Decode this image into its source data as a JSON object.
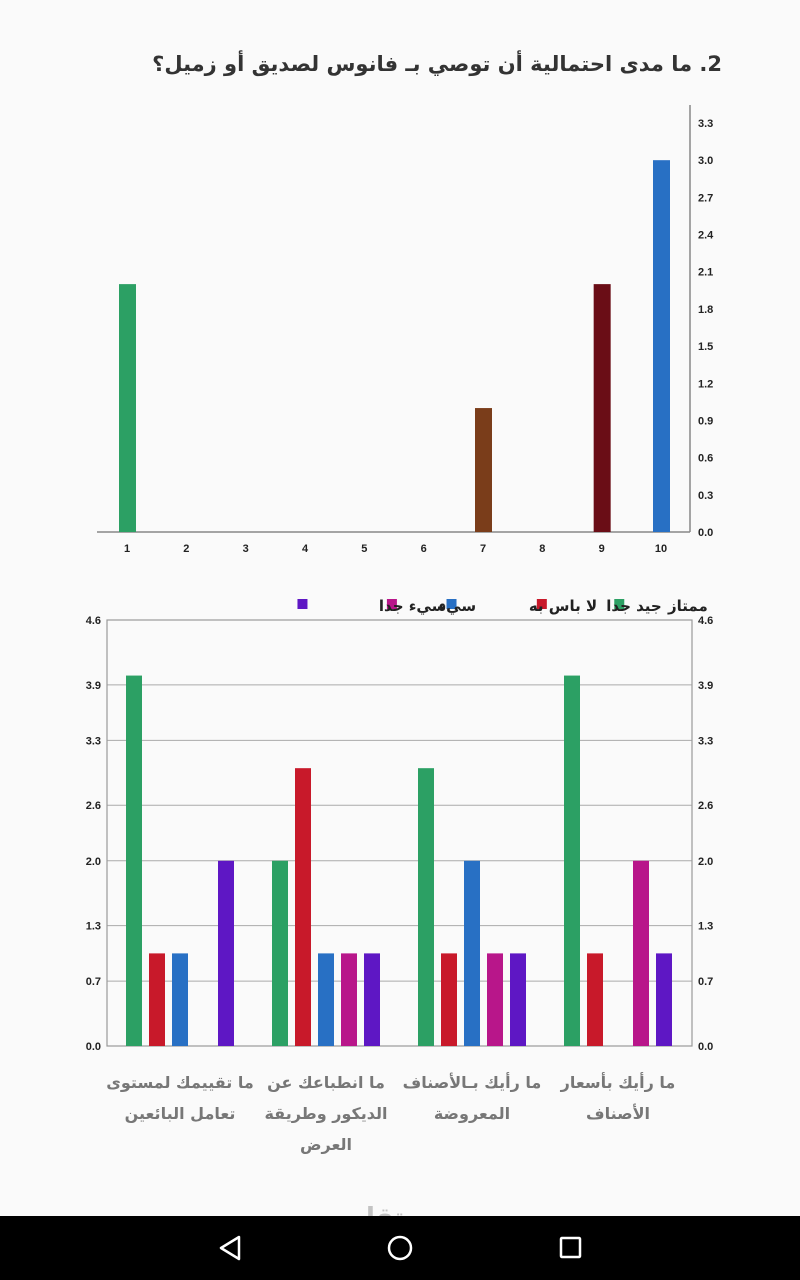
{
  "chart_data": [
    {
      "type": "bar",
      "title": "2. ما مدى احتمالية أن توصي بـ فانوس لصديق أو زميل؟",
      "categories": [
        "1",
        "2",
        "3",
        "4",
        "5",
        "6",
        "7",
        "8",
        "9",
        "10"
      ],
      "values": [
        2,
        0,
        0,
        0,
        0,
        0,
        1,
        0,
        2,
        3
      ],
      "colors": [
        "#2ca064",
        "#2ca064",
        "#2ca064",
        "#2ca064",
        "#2ca064",
        "#2ca064",
        "#7a3d1a",
        "#7a3d1a",
        "#6a0d16",
        "#2870c4"
      ],
      "yticks": [
        "0.0",
        "0.3",
        "0.6",
        "0.9",
        "1.2",
        "1.5",
        "1.8",
        "2.1",
        "2.4",
        "2.7",
        "3.0",
        "3.3"
      ],
      "ylim": [
        0,
        3.3
      ],
      "y_axis_side": "right",
      "grid": false
    },
    {
      "type": "bar",
      "categories": [
        "ما تقييمك لمستوى تعامل البائعين",
        "ما انطباعك عن الديكور وطريقة العرض",
        "ما رأيك بـالأصناف المعروضة",
        "ما رأيك بأسعار الأصناف"
      ],
      "series": [
        {
          "name": "ممتاز",
          "color": "#2ca064",
          "values": [
            4,
            2,
            3,
            4
          ]
        },
        {
          "name": "جيد جدا",
          "color": "#c8192a",
          "values": [
            1,
            3,
            1,
            1
          ]
        },
        {
          "name": "لا باس به",
          "color": "#2870c4",
          "values": [
            1,
            1,
            2,
            0
          ]
        },
        {
          "name": "سيء",
          "color": "#b8168a",
          "values": [
            0,
            1,
            1,
            2
          ]
        },
        {
          "name": "سيء جدا",
          "color": "#5e17c4",
          "values": [
            2,
            1,
            1,
            1
          ]
        }
      ],
      "yticks": [
        "0.0",
        "0.7",
        "1.3",
        "2.0",
        "2.6",
        "3.3",
        "3.9",
        "4.6"
      ],
      "ylim": [
        0,
        4.6
      ],
      "grid": true,
      "legend": "top-right"
    }
  ],
  "navbar": {
    "back": "back-icon",
    "home": "home-icon",
    "recents": "recents-icon"
  },
  "watermark": {
    "text": "مستقل",
    "url": "mostaql.com"
  }
}
